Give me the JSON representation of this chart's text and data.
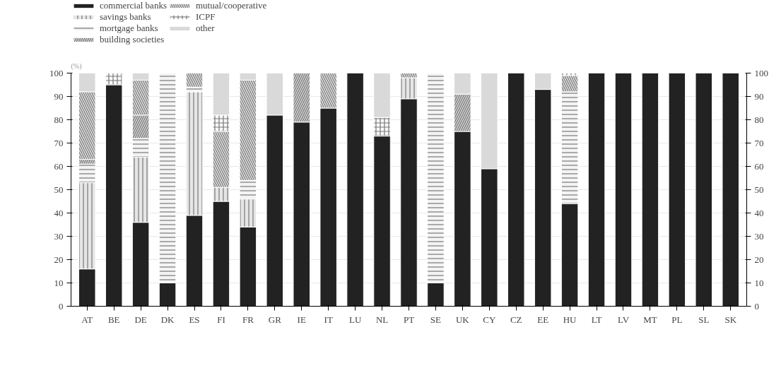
{
  "chart_data": {
    "type": "bar",
    "stacked": true,
    "ylabel": "(%)",
    "categories": [
      "AT",
      "BE",
      "DE",
      "DK",
      "ES",
      "FI",
      "FR",
      "GR",
      "IE",
      "IT",
      "LU",
      "NL",
      "PT",
      "SE",
      "UK",
      "CY",
      "CZ",
      "EE",
      "HU",
      "LT",
      "LV",
      "MT",
      "PL",
      "SL",
      "SK"
    ],
    "series": [
      {
        "name": "commercial banks",
        "color": "#222222",
        "values": [
          16,
          95,
          36,
          10,
          39,
          45,
          34,
          82,
          79,
          85,
          100,
          73,
          89,
          10,
          75,
          59,
          100,
          93,
          44,
          100,
          100,
          100,
          100,
          100,
          100
        ]
      },
      {
        "name": "savings banks",
        "color": "#e6e6e6",
        "values": [
          37,
          null,
          28,
          null,
          53,
          6,
          12,
          null,
          null,
          null,
          null,
          null,
          9,
          null,
          null,
          null,
          null,
          null,
          null,
          null,
          null,
          null,
          null,
          null,
          null
        ]
      },
      {
        "name": "mortgage banks",
        "color": "#f4f4f4",
        "values": [
          8,
          null,
          8,
          90,
          2,
          null,
          8,
          null,
          null,
          null,
          null,
          null,
          null,
          90,
          null,
          null,
          null,
          null,
          48,
          null,
          null,
          null,
          null,
          null,
          null
        ]
      },
      {
        "name": "building societies",
        "color": "#d0d0d0",
        "values": [
          2,
          null,
          10,
          null,
          null,
          null,
          null,
          null,
          21,
          null,
          null,
          null,
          null,
          null,
          16,
          null,
          null,
          null,
          null,
          null,
          null,
          null,
          null,
          null,
          null
        ]
      },
      {
        "name": "mutual/cooperative",
        "color": "#e0e0e0",
        "values": [
          29,
          null,
          15,
          null,
          6,
          24,
          43,
          null,
          null,
          15,
          null,
          null,
          2,
          null,
          null,
          null,
          null,
          null,
          7,
          null,
          null,
          null,
          null,
          null,
          null
        ]
      },
      {
        "name": "ICPF",
        "color": "#f8f8f8",
        "values": [
          null,
          5,
          null,
          null,
          null,
          7,
          null,
          null,
          null,
          null,
          null,
          8,
          null,
          null,
          null,
          null,
          null,
          null,
          1,
          null,
          null,
          null,
          null,
          null,
          null
        ]
      },
      {
        "name": "other",
        "color": "#d9d9d9",
        "values": [
          8,
          null,
          3,
          null,
          null,
          18,
          3,
          18,
          null,
          null,
          null,
          19,
          null,
          null,
          9,
          41,
          null,
          7,
          null,
          null,
          null,
          null,
          null,
          null,
          null
        ]
      }
    ],
    "ylim": [
      0,
      100
    ],
    "yticks": [
      0,
      10,
      20,
      30,
      40,
      50,
      60,
      70,
      80,
      90,
      100
    ],
    "y2lim": [
      0,
      100
    ],
    "y2ticks": [
      0,
      10,
      20,
      30,
      40,
      50,
      60,
      70,
      80,
      90,
      100
    ],
    "grid": "y",
    "legend": "top left"
  }
}
